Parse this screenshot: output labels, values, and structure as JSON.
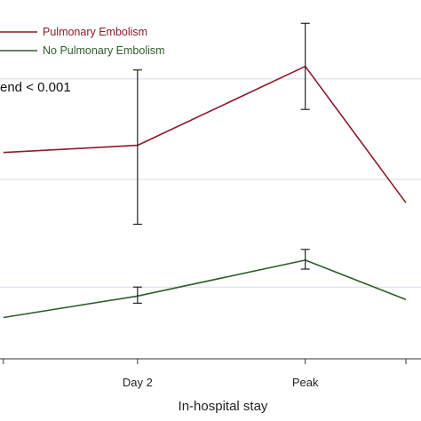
{
  "chart_data": {
    "type": "line",
    "xlabel": "In-hospital stay",
    "categories": [
      "",
      "Day 2",
      "Peak",
      ""
    ],
    "x_positions": [
      -0.8,
      0,
      1,
      1.6
    ],
    "xlim": [
      -0.82,
      1.69
    ],
    "ylim": [
      0,
      100
    ],
    "grid": true,
    "gridlines": [
      20,
      50,
      78
    ],
    "legend": {
      "placement": "top-left",
      "orientation": "vertical"
    },
    "annotation": "end < 0.001",
    "series": [
      {
        "name": "Pulmonary Embolism",
        "color": "#8b1a2b",
        "values": [
          57.5,
          59.5,
          81.5,
          43.5
        ],
        "errors": [
          null,
          [
            37.5,
            80.5
          ],
          [
            69.5,
            93.5
          ],
          null
        ]
      },
      {
        "name": "No Pulmonary Embolism",
        "color": "#2e5e2a",
        "values": [
          11.5,
          17.5,
          27.5,
          16.5
        ],
        "errors": [
          null,
          [
            15.5,
            20.0
          ],
          [
            25.0,
            30.5
          ],
          null
        ]
      }
    ]
  }
}
